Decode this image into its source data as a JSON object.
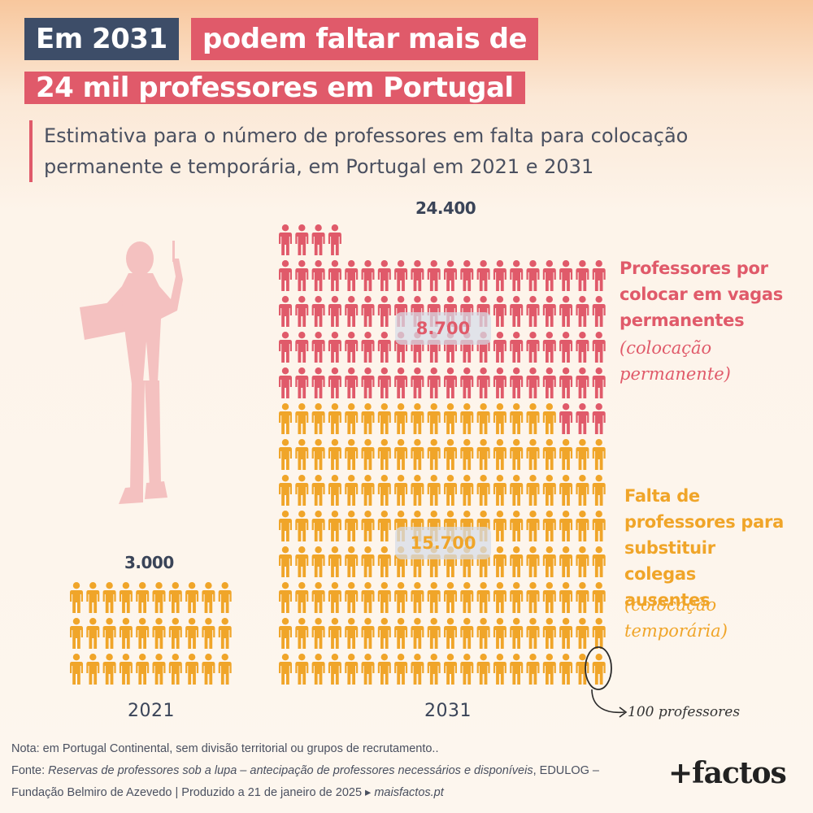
{
  "title": {
    "line1_year": "Em 2031",
    "line1_rest": "podem faltar mais de",
    "line2": "24 mil professores em Portugal"
  },
  "subtitle": "Estimativa para o número de professores em falta para colocação permanente e temporária, em Portugal em 2021 e 2031",
  "chart_data": {
    "type": "pictogram",
    "unit_value": 100,
    "unit_label": "100 professores",
    "categories": [
      "2021",
      "2031"
    ],
    "series": [
      {
        "name": "Professores por colocar em vagas permanentes",
        "sub_name": "(colocação permanente)",
        "color": "#e05a6a",
        "values": [
          0,
          8700
        ],
        "label": "8.700"
      },
      {
        "name": "Falta de professores para substituir colegas ausentes",
        "sub_name": "(colocação temporária)",
        "color": "#f0a529",
        "values": [
          3000,
          15700
        ],
        "label": "15.700"
      }
    ],
    "totals": [
      "3.000",
      "24.400"
    ]
  },
  "legend": {
    "permanent_title": "Professores por colocar em vagas permanentes",
    "permanent_sub": "(colocação permanente)",
    "temporary_title": "Falta de professores para substituir colegas ausentes",
    "temporary_sub": "(colocação temporária)"
  },
  "colors": {
    "permanent": "#e05a6a",
    "temporary": "#f0a529",
    "title_dark": "#3d4d68",
    "silhouette": "#f4c1c0"
  },
  "footer": {
    "note": "Nota: em Portugal Continental, sem divisão territorial ou grupos de recrutamento..",
    "source_prefix": "Fonte: ",
    "source_title": "Reservas de professores sob a lupa – antecipação de professores necessários e disponíveis",
    "source_suffix": ", EDULOG – Fundação Belmiro de Azevedo | Produzido a 21 de janeiro de 2025 ▸ ",
    "source_site": "maisfactos.pt",
    "logo": "+factos"
  }
}
